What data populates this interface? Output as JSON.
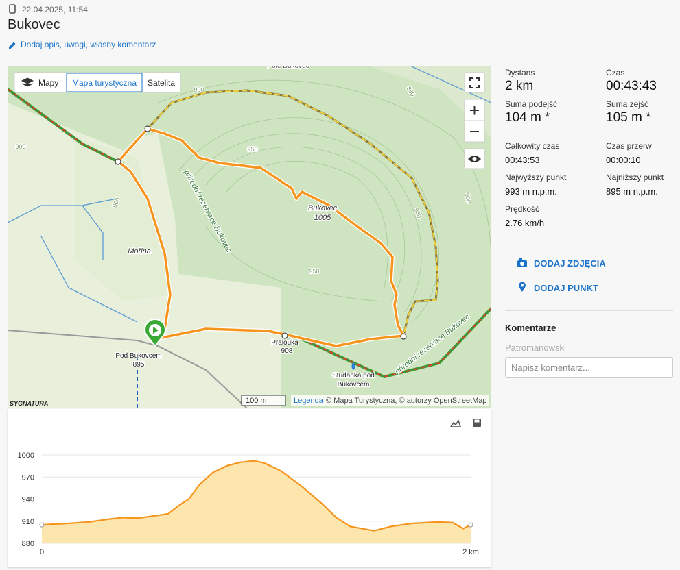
{
  "header": {
    "date": "22.04.2025, 11:54",
    "title": "Bukovec",
    "edit_link": "Dodaj opis, uwagi, własny komentarz"
  },
  "map": {
    "layer_buttons": [
      "Mapy",
      "Mapa turystyczna",
      "Satelita"
    ],
    "labels": [
      "Mořina",
      "Bukovec",
      "1005",
      "Pralouka",
      "908",
      "Pod Bukovcem",
      "895",
      "Studanka pod",
      "Bukovcem",
      "přírodní rezervace Bukovec",
      "přírodní rezervace Bukovec",
      "Pole Bukovec",
      "900",
      "850",
      "950",
      "950",
      "950",
      "900",
      "900",
      "900"
    ],
    "scale": "100 m",
    "legend_link": "Legenda",
    "attribution": "© Mapa Turystyczna, © autorzy OpenStreetMap",
    "logo": "SYGNATURA"
  },
  "chart_data": {
    "type": "line",
    "x": [
      0,
      0.045,
      0.125,
      0.221,
      0.317,
      0.381,
      0.445,
      0.541,
      0.589,
      0.637,
      0.685,
      0.733,
      0.797,
      0.861,
      0.925,
      0.989,
      1.037,
      1.117,
      1.213,
      1.309,
      1.373,
      1.437,
      1.549,
      1.629,
      1.725,
      1.853,
      1.917,
      1.965,
      2.0
    ],
    "values": [
      905,
      906,
      907,
      909,
      913,
      915,
      914,
      918,
      920,
      931,
      940,
      959,
      976,
      985,
      990,
      992,
      989,
      978,
      957,
      933,
      915,
      903,
      897,
      903,
      907,
      909,
      908,
      900,
      905
    ],
    "xlim": [
      0,
      2
    ],
    "xticks": [
      0,
      {
        "value": 2,
        "label": "2 km"
      }
    ],
    "ylim": [
      880,
      1000
    ],
    "yticks": [
      880,
      910,
      940,
      970,
      1000
    ],
    "color": "#f7941d",
    "fill": "#fde6ad",
    "grid": true
  },
  "stats": {
    "primary": [
      {
        "label": "Dystans",
        "value": "2 km"
      },
      {
        "label": "Czas",
        "value": "00:43:43"
      },
      {
        "label": "Suma podejść",
        "value": "104 m *"
      },
      {
        "label": "Suma zejść",
        "value": "105 m *"
      }
    ],
    "secondary": [
      {
        "label": "Całkowity czas",
        "value": "00:43:53"
      },
      {
        "label": "Czas przerw",
        "value": "00:00:10"
      },
      {
        "label": "Najwyższy punkt",
        "value": "993 m n.p.m."
      },
      {
        "label": "Najniższy punkt",
        "value": "895 m n.p.m."
      },
      {
        "label": "Prędkość",
        "value": "2.76 km/h"
      }
    ]
  },
  "actions": [
    "DODAJ ZDJĘCIA",
    "DODAJ PUNKT"
  ],
  "comments": {
    "title": "Komentarze",
    "user": "Patromanowski",
    "placeholder": "Napisz komentarz..."
  }
}
